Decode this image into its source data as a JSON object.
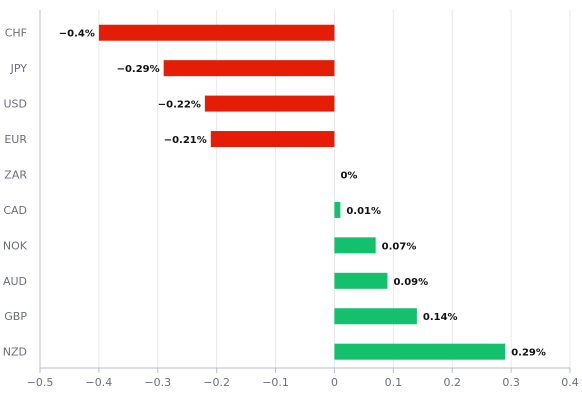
{
  "chart_data": {
    "type": "bar",
    "orientation": "horizontal",
    "categories": [
      "CHF",
      "JPY",
      "USD",
      "EUR",
      "ZAR",
      "CAD",
      "NOK",
      "AUD",
      "GBP",
      "NZD"
    ],
    "values": [
      -0.4,
      -0.29,
      -0.22,
      -0.21,
      0,
      0.01,
      0.07,
      0.09,
      0.14,
      0.29
    ],
    "value_labels": [
      "−0.4%",
      "−0.29%",
      "−0.22%",
      "−0.21%",
      "0%",
      "0.01%",
      "0.07%",
      "0.09%",
      "0.14%",
      "0.29%"
    ],
    "xlim": [
      -0.5,
      0.4
    ],
    "xticks": [
      -0.5,
      -0.4,
      -0.3,
      -0.2,
      -0.1,
      0,
      0.1,
      0.2,
      0.3,
      0.4
    ],
    "xtick_labels": [
      "−0.5",
      "−0.4",
      "−0.3",
      "−0.2",
      "−0.1",
      "0",
      "0.1",
      "0.2",
      "0.3",
      "0.4"
    ],
    "grid": "vertical",
    "colors": {
      "negative": "#e41d04",
      "positive": "#13c06b",
      "grid": "#e6e8ec",
      "axis": "#b9bdc6"
    }
  }
}
